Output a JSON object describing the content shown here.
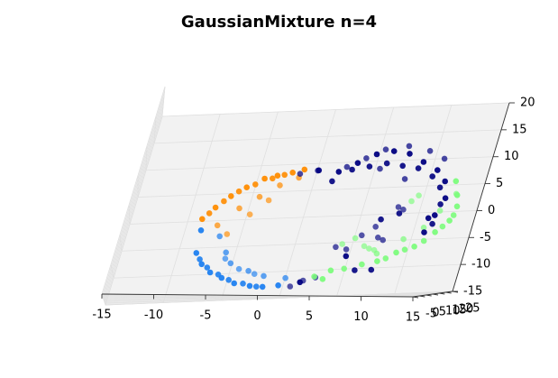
{
  "chart_data": {
    "type": "scatter",
    "projection": "3d",
    "title": "GaussianMixture n=4",
    "xlabel": "",
    "ylabel": "",
    "zlabel": "",
    "xlim": [
      -15,
      15
    ],
    "ylim": [
      -5,
      25
    ],
    "zlim": [
      -15,
      20
    ],
    "x_ticks": [
      "-15",
      "-10",
      "-5",
      "0",
      "5",
      "10",
      "15"
    ],
    "y_ticks": [
      "-5",
      "0",
      "5",
      "10",
      "15",
      "20",
      "25"
    ],
    "z_ticks": [
      "-15",
      "-10",
      "-5",
      "0",
      "5",
      "10",
      "15",
      "20"
    ],
    "grid": true,
    "legend": "none",
    "series": [
      {
        "color": "#ff8c00",
        "points": [
          [
            -8.2,
            10,
            -1.0
          ],
          [
            -7.3,
            10,
            1.0
          ],
          [
            -6.2,
            10,
            3.0
          ],
          [
            -5.0,
            10,
            4.5
          ],
          [
            -3.6,
            10,
            6.0
          ],
          [
            -2.5,
            10,
            6.5
          ],
          [
            -1.2,
            10,
            7.0
          ],
          [
            -0.2,
            10,
            7.5
          ],
          [
            -7.8,
            12,
            0.2
          ],
          [
            -6.8,
            12,
            2.3
          ],
          [
            -5.7,
            12,
            4.0
          ],
          [
            -4.4,
            12,
            5.2
          ],
          [
            -3.0,
            12,
            6.2
          ],
          [
            -2.0,
            12,
            6.8
          ],
          [
            -7.0,
            18,
            -1.5
          ],
          [
            -5.5,
            18,
            1.5
          ],
          [
            -4.0,
            18,
            3.5
          ],
          [
            -2.5,
            18,
            5.5
          ],
          [
            -1.0,
            18,
            6.8
          ],
          [
            -6.0,
            20,
            -3.0
          ],
          [
            -4.5,
            20,
            0.5
          ],
          [
            -3.2,
            20,
            3.0
          ]
        ]
      },
      {
        "color": "#1e7ff0",
        "points": [
          [
            -8.0,
            10,
            -3.0
          ],
          [
            -7.8,
            10,
            -7.0
          ],
          [
            -7.0,
            10,
            -9.0
          ],
          [
            -6.0,
            10,
            -10.5
          ],
          [
            -4.8,
            10,
            -11.5
          ],
          [
            -3.5,
            10,
            -12.5
          ],
          [
            -2.0,
            10,
            -13.0
          ],
          [
            -0.8,
            10,
            -13.2
          ],
          [
            0.6,
            10,
            -13.0
          ],
          [
            -7.4,
            12,
            -8.0
          ],
          [
            -6.5,
            12,
            -9.5
          ],
          [
            -5.3,
            12,
            -10.8
          ],
          [
            -4.2,
            12,
            -11.8
          ],
          [
            -2.8,
            12,
            -12.5
          ],
          [
            -1.5,
            12,
            -13.1
          ],
          [
            -6.5,
            18,
            -3.5
          ],
          [
            -5.5,
            18,
            -6.5
          ],
          [
            -4.8,
            18,
            -8.5
          ],
          [
            -3.0,
            18,
            -10.0
          ],
          [
            -1.5,
            18,
            -11.0
          ],
          [
            0.5,
            18,
            -11.5
          ],
          [
            -5.5,
            20,
            -7.5
          ],
          [
            -4.0,
            20,
            -9.5
          ],
          [
            -2.5,
            20,
            -10.5
          ]
        ]
      },
      {
        "color": "#7cfc7c",
        "points": [
          [
            9.0,
            10,
            -9.0
          ],
          [
            10.5,
            10,
            -7.5
          ],
          [
            12.0,
            10,
            -6.5
          ],
          [
            13.5,
            10,
            -4.0
          ],
          [
            14.5,
            10,
            -2.0
          ],
          [
            14.8,
            10,
            0.5
          ],
          [
            14.5,
            10,
            2.5
          ],
          [
            14.0,
            10,
            5.0
          ],
          [
            7.5,
            12,
            -9.5
          ],
          [
            9.5,
            12,
            -8.5
          ],
          [
            11.0,
            12,
            -7.0
          ],
          [
            12.5,
            12,
            -5.5
          ],
          [
            13.8,
            12,
            -3.0
          ],
          [
            14.5,
            12,
            -1.0
          ],
          [
            5.0,
            10,
            -10.5
          ],
          [
            6.0,
            12,
            -10.2
          ],
          [
            4.5,
            10,
            -12.0
          ],
          [
            3.5,
            12,
            -11.5
          ],
          [
            8.0,
            18,
            -7.5
          ],
          [
            10.0,
            18,
            -5.0
          ],
          [
            11.5,
            18,
            -3.0
          ],
          [
            12.5,
            18,
            0.0
          ],
          [
            13.5,
            18,
            3.0
          ],
          [
            9.5,
            20,
            2.0
          ],
          [
            10.0,
            20,
            3.0
          ],
          [
            5.5,
            20,
            -4.5
          ],
          [
            6.5,
            20,
            -6.0
          ],
          [
            7.0,
            20,
            -6.5
          ],
          [
            7.5,
            20,
            -6.8
          ],
          [
            4.5,
            20,
            -5.5
          ]
        ]
      },
      {
        "color": "#000080",
        "points": [
          [
            3.0,
            10,
            7.0
          ],
          [
            4.5,
            10,
            8.5
          ],
          [
            6.0,
            10,
            10.0
          ],
          [
            7.5,
            10,
            10.5
          ],
          [
            9.0,
            10,
            10.0
          ],
          [
            10.5,
            10,
            8.5
          ],
          [
            12.0,
            10,
            7.0
          ],
          [
            13.0,
            10,
            5.0
          ],
          [
            13.5,
            10,
            2.0
          ],
          [
            13.0,
            10,
            -1.0
          ],
          [
            12.5,
            10,
            -4.0
          ],
          [
            2.5,
            12,
            5.5
          ],
          [
            4.0,
            12,
            7.5
          ],
          [
            5.5,
            12,
            8.0
          ],
          [
            7.0,
            12,
            8.5
          ],
          [
            8.5,
            12,
            8.0
          ],
          [
            10.0,
            12,
            7.5
          ],
          [
            11.5,
            12,
            6.0
          ],
          [
            12.5,
            12,
            4.0
          ],
          [
            13.0,
            12,
            1.0
          ],
          [
            12.8,
            12,
            -2.5
          ],
          [
            3.0,
            18,
            8.5
          ],
          [
            4.5,
            18,
            10.0
          ],
          [
            6.0,
            18,
            11.5
          ],
          [
            8.0,
            18,
            12.0
          ],
          [
            10.0,
            18,
            11.0
          ],
          [
            11.5,
            18,
            9.5
          ],
          [
            -1.0,
            18,
            7.5
          ],
          [
            0.5,
            18,
            8.0
          ],
          [
            7.0,
            20,
            -2.5
          ],
          [
            7.5,
            20,
            -4.5
          ],
          [
            8.0,
            20,
            -5.0
          ],
          [
            9.0,
            20,
            0.5
          ],
          [
            8.5,
            20,
            1.0
          ],
          [
            3.0,
            20,
            -11.5
          ],
          [
            2.0,
            20,
            -12.0
          ],
          [
            1.0,
            20,
            -13.0
          ],
          [
            7.0,
            12,
            -10.5
          ],
          [
            8.5,
            12,
            -10.5
          ],
          [
            2.5,
            10,
            -12.5
          ],
          [
            4.0,
            20,
            -6.0
          ],
          [
            5.0,
            20,
            -6.5
          ],
          [
            6.0,
            20,
            -4.0
          ],
          [
            8.0,
            12,
            -1.5
          ],
          [
            9.5,
            12,
            -0.5
          ],
          [
            8.5,
            18,
            6.0
          ],
          [
            6.0,
            18,
            8.0
          ],
          [
            1.0,
            12,
            7.5
          ],
          [
            12.5,
            10,
            -1.5
          ],
          [
            6.0,
            10,
            -8.0
          ]
        ]
      }
    ]
  }
}
